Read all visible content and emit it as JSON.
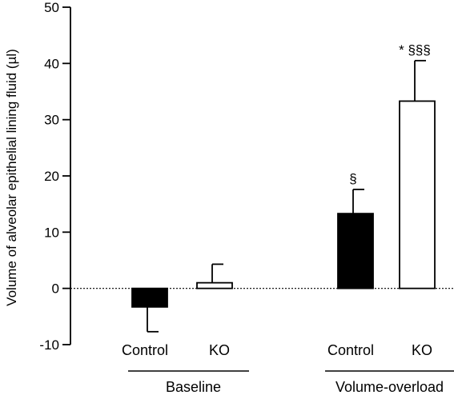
{
  "chart_data": {
    "type": "bar",
    "title": "",
    "ylabel": "Volume of alveolar epithelial lining fluid (µl)",
    "xlabel": "",
    "ylim": [
      -10,
      50
    ],
    "yticks": [
      -10,
      0,
      10,
      20,
      30,
      40,
      50
    ],
    "zero_line": "dotted",
    "groups": [
      {
        "label": "Baseline",
        "bars": [
          {
            "category": "Control",
            "value": -3.3,
            "error": 4.4,
            "fill": "#000000",
            "annotation": ""
          },
          {
            "category": "KO",
            "value": 1.0,
            "error": 3.3,
            "fill": "#ffffff",
            "annotation": ""
          }
        ]
      },
      {
        "label": "Volume-overload",
        "bars": [
          {
            "category": "Control",
            "value": 13.3,
            "error": 4.3,
            "fill": "#000000",
            "annotation": "§"
          },
          {
            "category": "KO",
            "value": 33.3,
            "error": 7.2,
            "fill": "#ffffff",
            "annotation": "* §§§"
          }
        ]
      }
    ]
  }
}
